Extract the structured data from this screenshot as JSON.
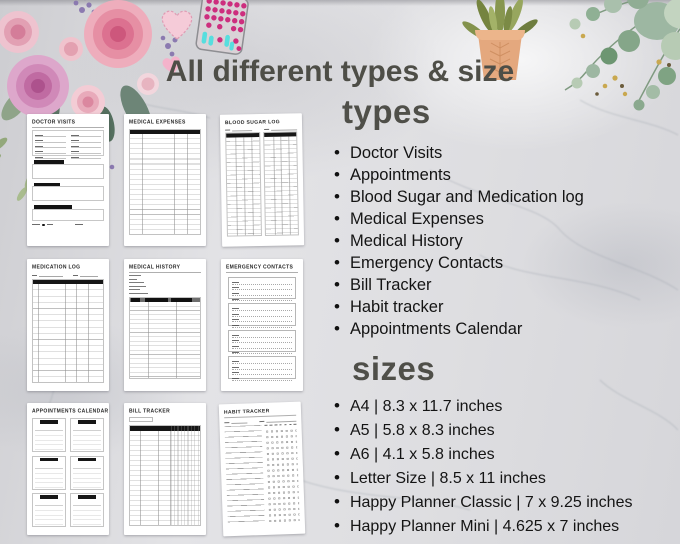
{
  "title": "All different types & size",
  "types": {
    "heading": "types",
    "items": [
      "Doctor Visits",
      "Appointments",
      "Blood Sugar and Medication log",
      "Medical Expenses",
      "Medical History",
      "Emergency Contacts",
      "Bill Tracker",
      "Habit tracker",
      "Appointments Calendar"
    ]
  },
  "sizes": {
    "heading": "sizes",
    "items": [
      "A4 | 8.3 x 11.7 inches",
      "A5 | 5.8 x 8.3 inches",
      "A6 | 4.1 x 5.8 inches",
      "Letter Size | 8.5 x 11 inches",
      "Happy Planner Classic | 7 x 9.25 inches",
      "Happy Planner Mini | 4.625 x 7 inches"
    ]
  },
  "pages": [
    {
      "title": "DOCTOR VISITS",
      "layout": "doctor-visits"
    },
    {
      "title": "MEDICAL EXPENSES",
      "layout": "expense-table"
    },
    {
      "title": "BLOOD SUGAR LOG",
      "layout": "two-tables"
    },
    {
      "title": "MEDICATION LOG",
      "layout": "numbered-table"
    },
    {
      "title": "MEDICAL HISTORY",
      "layout": "history"
    },
    {
      "title": "EMERGENCY CONTACTS",
      "layout": "contact-boxes"
    },
    {
      "title": "APPOINTMENTS CALENDAR",
      "layout": "month-boxes"
    },
    {
      "title": "BILL TRACKER",
      "layout": "bill-table"
    },
    {
      "title": "HABIT TRACKER",
      "layout": "habit-grid"
    }
  ],
  "decorations": [
    "watercolor-rose-bouquet",
    "stitched-heart-sticker",
    "pill-organizer",
    "small-pink-heart",
    "potted-plant",
    "eucalyptus-greenery"
  ],
  "colors": {
    "background": "#dcdcde",
    "heading_text": "#4f4f49",
    "list_text": "#141414",
    "page_header_bar": "#161616",
    "pink_heart": "#f5cbd8",
    "magenta_pill": "#cd2e7e",
    "cyan_pill": "#57dede",
    "rose_pink": "#e68fa4",
    "eucalyptus_green": "#9db7a2",
    "pot_terracotta": "#e4a87e"
  }
}
